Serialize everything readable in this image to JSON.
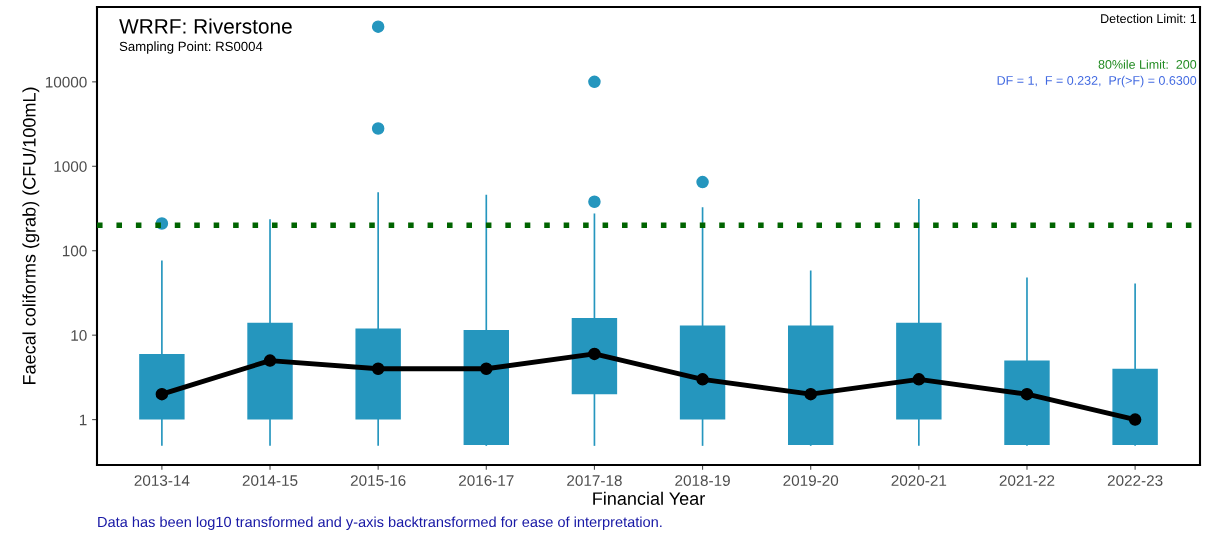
{
  "chart_data": {
    "type": "box",
    "title": "WRRF: Riverstone",
    "subtitle": "Sampling Point: RS0004",
    "xlabel": "Financial Year",
    "ylabel": "Faecal coliforms (grab) (CFU/100mL)",
    "categories": [
      "2013-14",
      "2014-15",
      "2015-16",
      "2016-17",
      "2017-18",
      "2018-19",
      "2019-20",
      "2020-21",
      "2021-22",
      "2022-23"
    ],
    "series": [
      {
        "color": "#2596be",
        "boxes": [
          {
            "low": 0.5,
            "q1": 1,
            "median": 2,
            "q3": 6,
            "high": 75,
            "outliers": [
              210
            ]
          },
          {
            "low": 0.5,
            "q1": 1,
            "median": 5,
            "q3": 14,
            "high": 230
          },
          {
            "low": 0.5,
            "q1": 1,
            "median": 4,
            "q3": 12,
            "high": 480,
            "outliers": [
              2800,
              45000
            ]
          },
          {
            "low": 0.5,
            "q1": 0.5,
            "median": 4,
            "q3": 11.5,
            "high": 450
          },
          {
            "low": 0.5,
            "q1": 2,
            "median": 6,
            "q3": 16,
            "high": 270,
            "outliers": [
              380,
              10000
            ]
          },
          {
            "low": 0.5,
            "q1": 1,
            "median": 3,
            "q3": 13,
            "high": 320,
            "outliers": [
              650
            ]
          },
          {
            "low": 0.5,
            "q1": 0.5,
            "median": 2,
            "q3": 13,
            "high": 57
          },
          {
            "low": 0.5,
            "q1": 1,
            "median": 3,
            "q3": 14,
            "high": 400
          },
          {
            "low": 0.5,
            "q1": 0.5,
            "median": 2,
            "q3": 5,
            "high": 47
          },
          {
            "low": 0.5,
            "q1": 0.5,
            "median": 1,
            "q3": 4,
            "high": 40
          }
        ]
      },
      {
        "type": "line",
        "color": "#000000",
        "line_style": "solid",
        "values": [
          2,
          5,
          4,
          4,
          6,
          3,
          2,
          3,
          2,
          1
        ]
      }
    ],
    "log": "y",
    "ylim": [
      0.29,
      77000
    ],
    "yticks": [
      1,
      10,
      100,
      1000,
      10000
    ],
    "grid": false,
    "legend": false,
    "ref_lines": [
      {
        "axis": "y",
        "value": 200,
        "color": "#006400",
        "line_style": "dotted"
      }
    ],
    "annotations": [
      "Detection Limit: 1",
      "80%ile Limit:  200",
      "DF = 1,  F = 0.232,  Pr(>F) = 0.6300",
      "Data has been log10 transformed and y-axis backtransformed for ease of interpretation."
    ]
  }
}
